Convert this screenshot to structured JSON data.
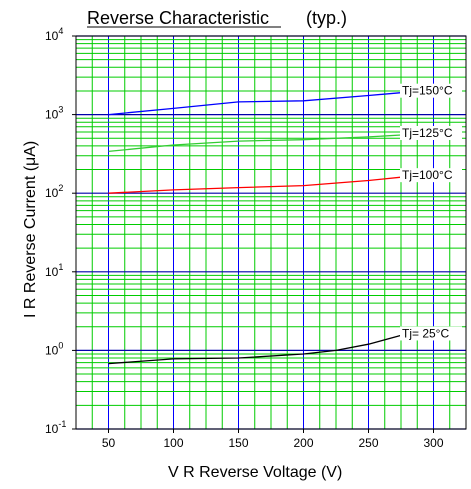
{
  "chart_data": {
    "type": "line",
    "title": "Reverse Characteristic",
    "subtitle": "(typ.)",
    "xlabel": "V R   Reverse Voltage   (V)",
    "ylabel": "I R   Reverse Current  (μA)",
    "xscale": "linear",
    "yscale": "log",
    "xlim": [
      25,
      325
    ],
    "ylim": [
      0.1,
      10000
    ],
    "grid": true,
    "x_ticks": [
      "50",
      "100",
      "150",
      "200",
      "250",
      "300"
    ],
    "y_ticks": [
      {
        "base": "10",
        "exp": "-1"
      },
      {
        "base": "10",
        "exp": "0"
      },
      {
        "base": "10",
        "exp": "1"
      },
      {
        "base": "10",
        "exp": "2"
      },
      {
        "base": "10",
        "exp": "3"
      },
      {
        "base": "10",
        "exp": "4"
      }
    ],
    "series": [
      {
        "name": "Tj=150°C",
        "color": "#0000ff",
        "x": [
          50,
          100,
          150,
          200,
          250,
          275
        ],
        "y": [
          1000,
          1200,
          1450,
          1500,
          1750,
          1900
        ]
      },
      {
        "name": "Tj=125°C",
        "color": "#33cc33",
        "x": [
          50,
          100,
          150,
          200,
          250,
          275
        ],
        "y": [
          340,
          410,
          460,
          480,
          520,
          550
        ]
      },
      {
        "name": "Tj=100°C",
        "color": "#ff0000",
        "x": [
          50,
          100,
          150,
          200,
          250,
          275
        ],
        "y": [
          100,
          110,
          118,
          125,
          145,
          160
        ]
      },
      {
        "name": "Tj= 25°C",
        "color": "#000000",
        "x": [
          50,
          100,
          150,
          200,
          225,
          250,
          275
        ],
        "y": [
          0.68,
          0.78,
          0.8,
          0.9,
          1.0,
          1.2,
          1.55
        ]
      }
    ],
    "colors": {
      "major_vertical_grid": "#0000ff",
      "minor_vertical_grid": "#00cc00",
      "decade_horizontal_grid": "#0000aa",
      "minor_horizontal_grid": "#00cc00",
      "frame": "#000000"
    }
  }
}
